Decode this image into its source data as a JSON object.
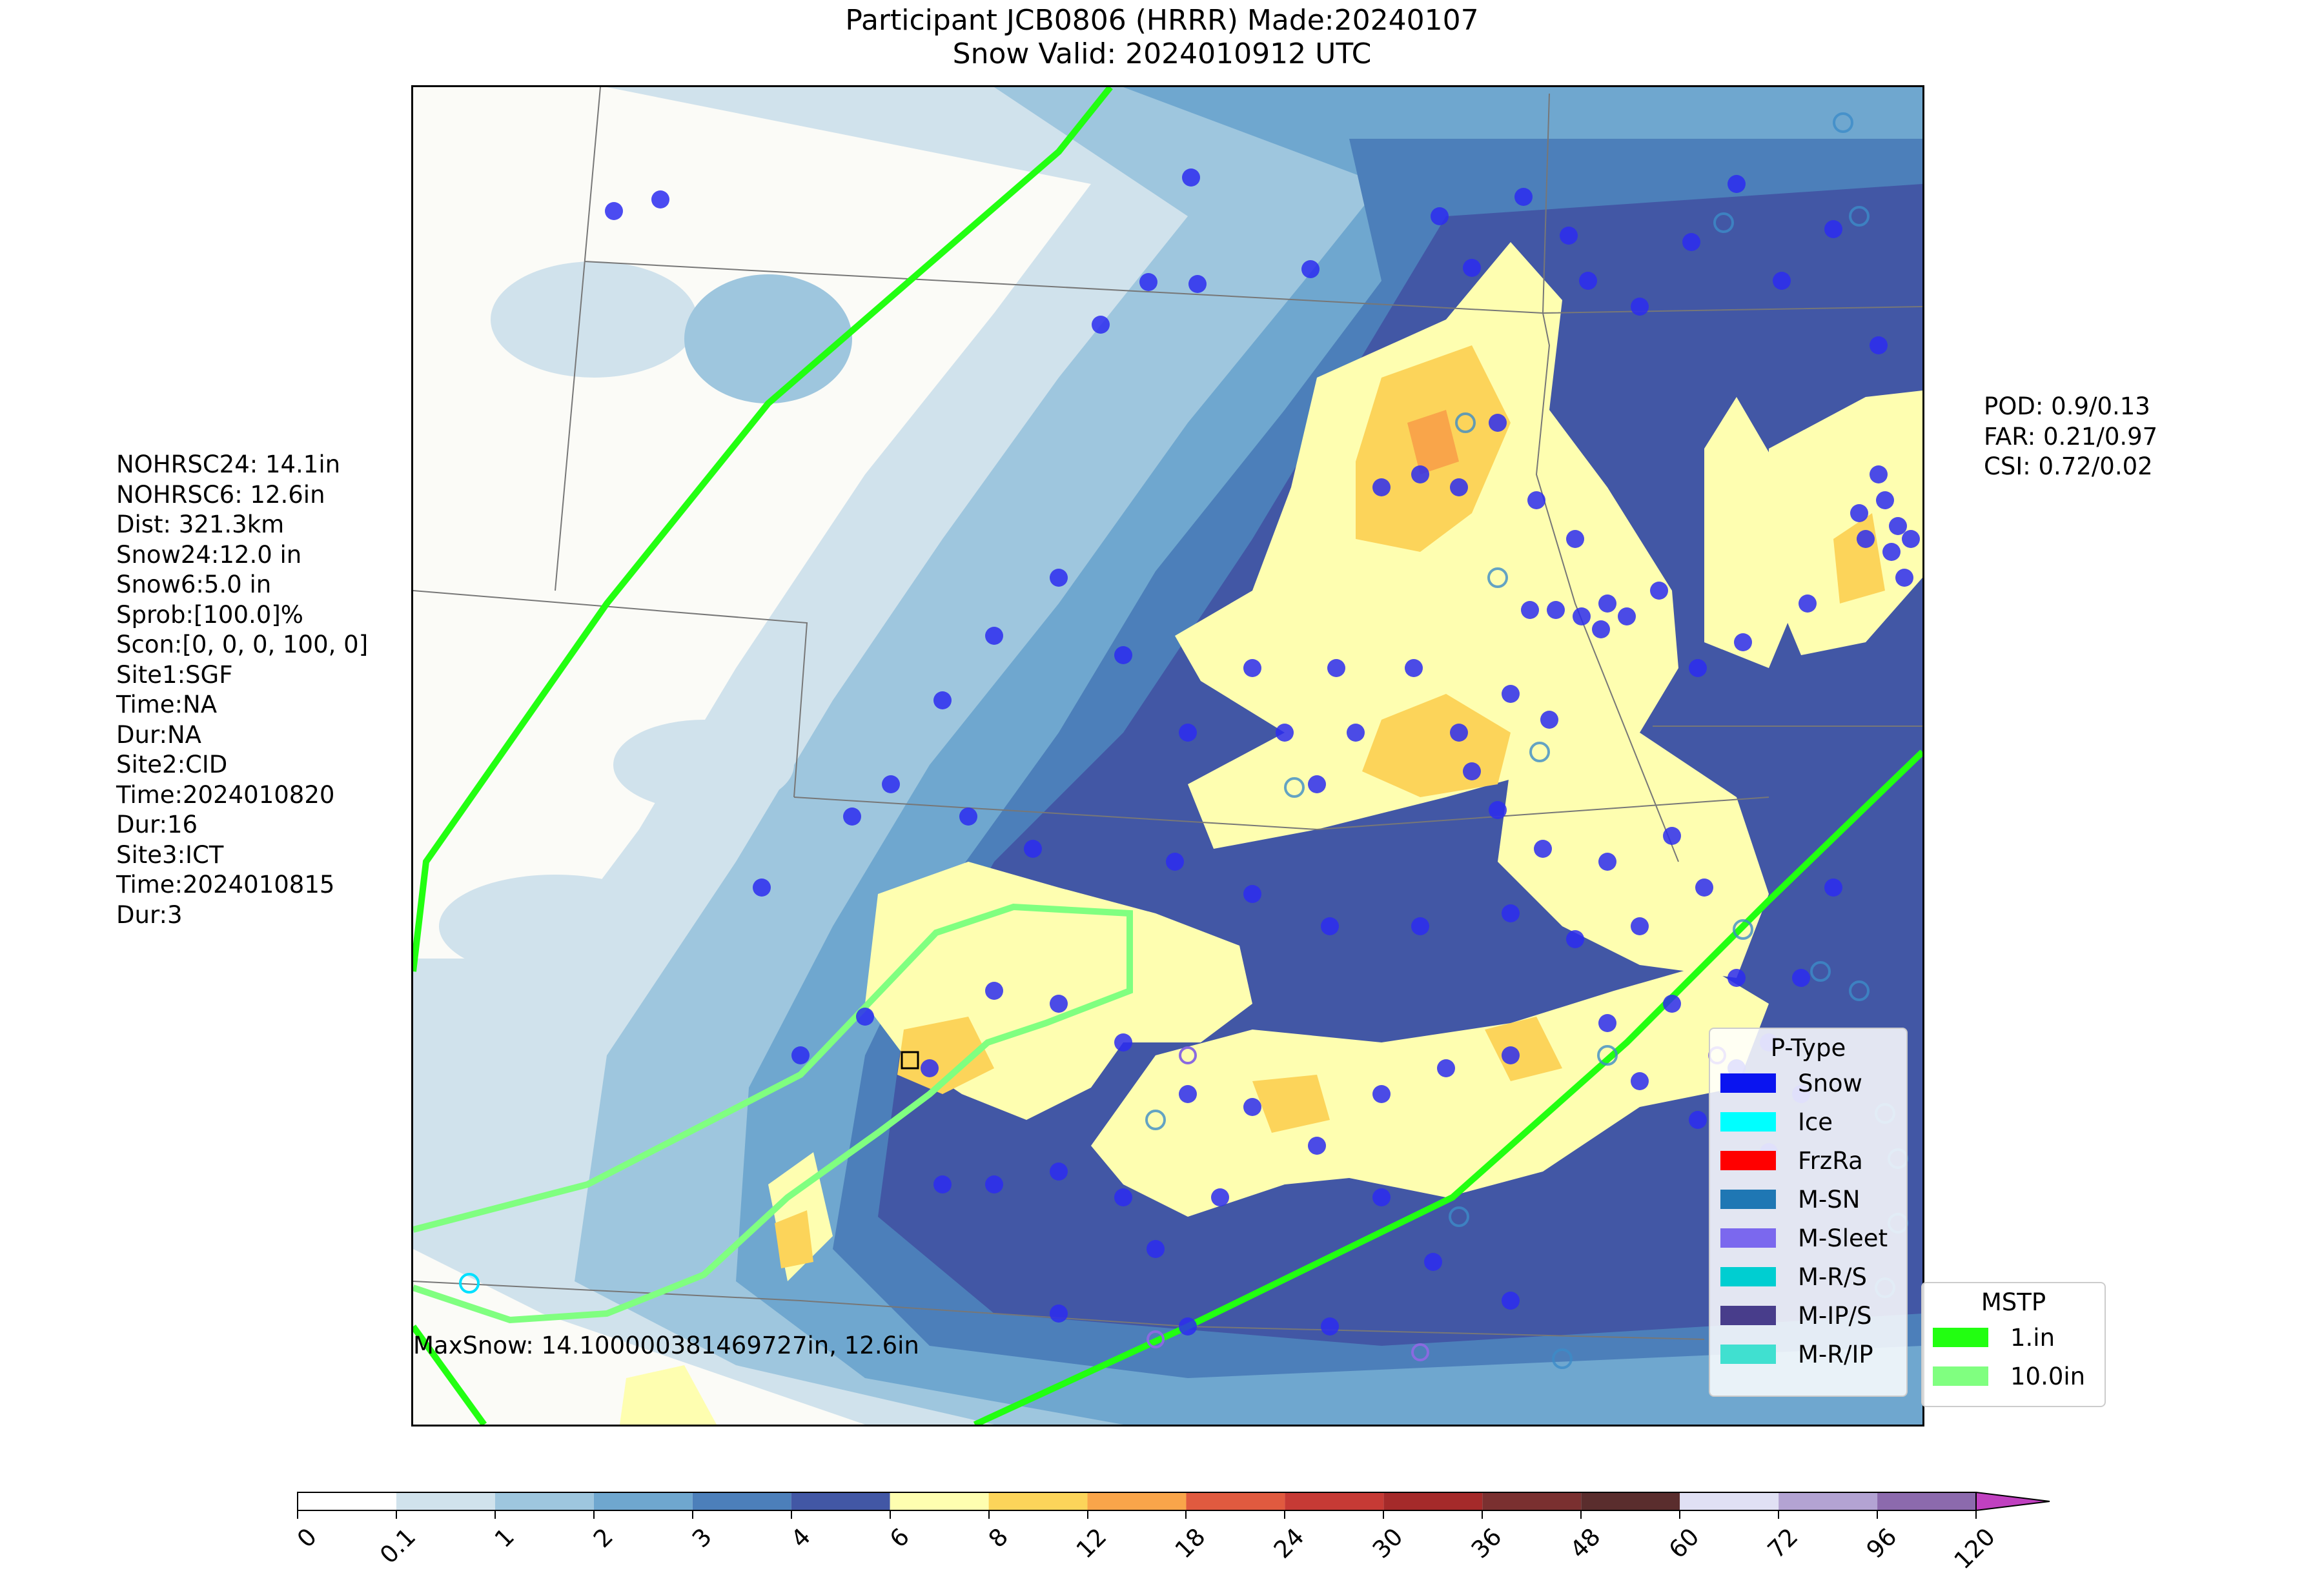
{
  "title": {
    "line1": "Participant JCB0806 (HRRR) Made:20240107",
    "line2": "Snow Valid: 2024010912 UTC"
  },
  "left_stats": [
    "NOHRSC24: 14.1in",
    "NOHRSC6: 12.6in",
    "Dist: 321.3km",
    "Snow24:12.0 in",
    "Snow6:5.0 in",
    "Sprob:[100.0]%",
    "Scon:[0, 0, 0, 100, 0]",
    "Site1:SGF",
    "Time:NA",
    "Dur:NA",
    "Site2:CID",
    "Time:2024010820",
    "Dur:16",
    "Site3:ICT",
    "Time:2024010815",
    "Dur:3"
  ],
  "verification": {
    "pod": "POD: 0.9/0.13",
    "far": "FAR: 0.21/0.97",
    "csi": "CSI: 0.72/0.02"
  },
  "max_snow": "MaxSnow: 14.100000381469727in, 12.6in",
  "ptype_legend": {
    "title": "P-Type",
    "items": [
      {
        "label": "Snow",
        "color": "#0a14f0"
      },
      {
        "label": "Ice",
        "color": "#00ffff"
      },
      {
        "label": "FrzRa",
        "color": "#ff0000"
      },
      {
        "label": "M-SN",
        "color": "#1f77b4"
      },
      {
        "label": "M-Sleet",
        "color": "#7b68ee"
      },
      {
        "label": "M-R/S",
        "color": "#00ced1"
      },
      {
        "label": "M-IP/S",
        "color": "#483d8b"
      },
      {
        "label": "M-R/IP",
        "color": "#40e0d0"
      }
    ]
  },
  "mstp_legend": {
    "title": "MSTP",
    "items": [
      {
        "label": "1.in",
        "color": "#22ff11"
      },
      {
        "label": "10.0in",
        "color": "#80ff80"
      }
    ]
  },
  "colorbar": {
    "ticks": [
      "0",
      "0.1",
      "1",
      "2",
      "3",
      "4",
      "6",
      "8",
      "12",
      "18",
      "24",
      "30",
      "36",
      "48",
      "60",
      "72",
      "96",
      "120"
    ],
    "colors": [
      "#ffffff",
      "#d0e2ec",
      "#9ec6de",
      "#6fa7cf",
      "#4c7fba",
      "#4257a5",
      "#fefeb0",
      "#fcd45a",
      "#f9a54a",
      "#e05a3f",
      "#c63a35",
      "#a52a2a",
      "#7a3030",
      "#5a2d2d",
      "#e0e0f4",
      "#b3a3d3",
      "#8c6aad",
      "#5e3c78"
    ],
    "extend_color": "#c040c0"
  }
}
